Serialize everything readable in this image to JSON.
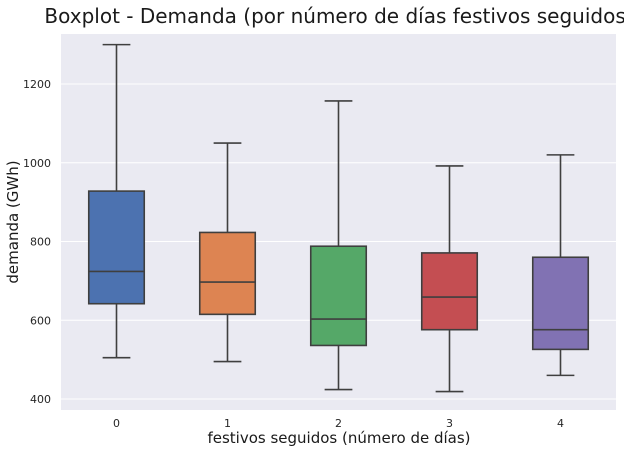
{
  "chart_data": {
    "type": "boxplot",
    "title": "Boxplot - Demanda (por número de días festivos seguidos)",
    "xlabel": "festivos seguidos (número de días)",
    "ylabel": "demanda (GWh)",
    "ylim": [
      380,
      1340
    ],
    "yticks": [
      400,
      600,
      800,
      1000,
      1200
    ],
    "grid": true,
    "categories": [
      "0",
      "1",
      "2",
      "3",
      "4"
    ],
    "boxes": [
      {
        "category": "0",
        "min": 505,
        "q1": 642,
        "median": 724,
        "q3": 928,
        "max": 1300,
        "color": "#4c72b0"
      },
      {
        "category": "1",
        "min": 495,
        "q1": 615,
        "median": 697,
        "q3": 823,
        "max": 1050,
        "color": "#dd8452"
      },
      {
        "category": "2",
        "min": 424,
        "q1": 536,
        "median": 603,
        "q3": 788,
        "max": 1157,
        "color": "#55a868"
      },
      {
        "category": "3",
        "min": 419,
        "q1": 576,
        "median": 659,
        "q3": 771,
        "max": 992,
        "color": "#c44e52"
      },
      {
        "category": "4",
        "min": 460,
        "q1": 526,
        "median": 576,
        "q3": 760,
        "max": 1020,
        "color": "#8172b3"
      }
    ]
  },
  "colors": {
    "plot_background": "#eaeaf2",
    "grid": "#ffffff",
    "box_edge": "#3f3f3f"
  }
}
